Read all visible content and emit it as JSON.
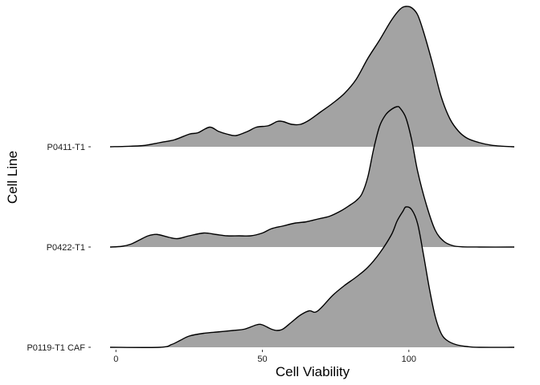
{
  "chart_data": {
    "type": "area",
    "xlabel": "Cell Viability",
    "ylabel": "Cell Line",
    "xlim": [
      -2,
      136
    ],
    "x_ticks": [
      0,
      50,
      100
    ],
    "grid": false,
    "legend": "none",
    "fill_color": "#a3a3a3",
    "line_color": "#000000",
    "categories": [
      "P0411-T1",
      "P0422-T1",
      "P0119-T1 CAF"
    ],
    "series": [
      {
        "category": "P0411-T1",
        "points": [
          [
            -2,
            0
          ],
          [
            5,
            0.004
          ],
          [
            10,
            0.01
          ],
          [
            15,
            0.03
          ],
          [
            20,
            0.05
          ],
          [
            25,
            0.09
          ],
          [
            28,
            0.1
          ],
          [
            32,
            0.14
          ],
          [
            35,
            0.11
          ],
          [
            38,
            0.09
          ],
          [
            41,
            0.08
          ],
          [
            45,
            0.11
          ],
          [
            48,
            0.14
          ],
          [
            52,
            0.15
          ],
          [
            55,
            0.18
          ],
          [
            57,
            0.18
          ],
          [
            60,
            0.16
          ],
          [
            63,
            0.16
          ],
          [
            66,
            0.19
          ],
          [
            70,
            0.25
          ],
          [
            74,
            0.31
          ],
          [
            78,
            0.38
          ],
          [
            82,
            0.48
          ],
          [
            86,
            0.63
          ],
          [
            90,
            0.76
          ],
          [
            94,
            0.9
          ],
          [
            97,
            0.98
          ],
          [
            99,
            1.0
          ],
          [
            101,
            0.99
          ],
          [
            103,
            0.94
          ],
          [
            105,
            0.82
          ],
          [
            108,
            0.6
          ],
          [
            111,
            0.36
          ],
          [
            114,
            0.2
          ],
          [
            117,
            0.11
          ],
          [
            120,
            0.06
          ],
          [
            124,
            0.03
          ],
          [
            128,
            0.012
          ],
          [
            132,
            0.004
          ],
          [
            136,
            0
          ]
        ]
      },
      {
        "category": "P0422-T1",
        "points": [
          [
            -2,
            0
          ],
          [
            2,
            0.005
          ],
          [
            5,
            0.02
          ],
          [
            8,
            0.05
          ],
          [
            11,
            0.08
          ],
          [
            14,
            0.09
          ],
          [
            18,
            0.07
          ],
          [
            21,
            0.06
          ],
          [
            25,
            0.08
          ],
          [
            30,
            0.1
          ],
          [
            34,
            0.09
          ],
          [
            38,
            0.08
          ],
          [
            42,
            0.08
          ],
          [
            46,
            0.08
          ],
          [
            50,
            0.1
          ],
          [
            53,
            0.13
          ],
          [
            57,
            0.15
          ],
          [
            61,
            0.17
          ],
          [
            65,
            0.18
          ],
          [
            69,
            0.2
          ],
          [
            73,
            0.22
          ],
          [
            77,
            0.26
          ],
          [
            80,
            0.3
          ],
          [
            82,
            0.33
          ],
          [
            84,
            0.38
          ],
          [
            86,
            0.5
          ],
          [
            88,
            0.7
          ],
          [
            90,
            0.86
          ],
          [
            92,
            0.94
          ],
          [
            94,
            0.98
          ],
          [
            96,
            1.0
          ],
          [
            97,
            0.99
          ],
          [
            99,
            0.92
          ],
          [
            101,
            0.76
          ],
          [
            103,
            0.54
          ],
          [
            106,
            0.3
          ],
          [
            109,
            0.12
          ],
          [
            112,
            0.04
          ],
          [
            115,
            0.01
          ],
          [
            118,
            0.002
          ],
          [
            124,
            0
          ],
          [
            136,
            0
          ]
        ]
      },
      {
        "category": "P0119-T1 CAF",
        "points": [
          [
            -2,
            0
          ],
          [
            15,
            0
          ],
          [
            19,
            0.02
          ],
          [
            22,
            0.05
          ],
          [
            25,
            0.08
          ],
          [
            30,
            0.1
          ],
          [
            35,
            0.11
          ],
          [
            40,
            0.12
          ],
          [
            44,
            0.13
          ],
          [
            48,
            0.16
          ],
          [
            50,
            0.16
          ],
          [
            53,
            0.13
          ],
          [
            55,
            0.12
          ],
          [
            57,
            0.13
          ],
          [
            60,
            0.18
          ],
          [
            63,
            0.23
          ],
          [
            66,
            0.26
          ],
          [
            68,
            0.25
          ],
          [
            70,
            0.28
          ],
          [
            74,
            0.37
          ],
          [
            78,
            0.44
          ],
          [
            82,
            0.5
          ],
          [
            86,
            0.57
          ],
          [
            90,
            0.67
          ],
          [
            94,
            0.8
          ],
          [
            96,
            0.9
          ],
          [
            98,
            0.97
          ],
          [
            99,
            1.0
          ],
          [
            101,
            0.98
          ],
          [
            103,
            0.88
          ],
          [
            105,
            0.66
          ],
          [
            107,
            0.42
          ],
          [
            109,
            0.22
          ],
          [
            111,
            0.1
          ],
          [
            113,
            0.05
          ],
          [
            116,
            0.02
          ],
          [
            120,
            0.005
          ],
          [
            124,
            0
          ],
          [
            136,
            0
          ]
        ]
      }
    ]
  }
}
